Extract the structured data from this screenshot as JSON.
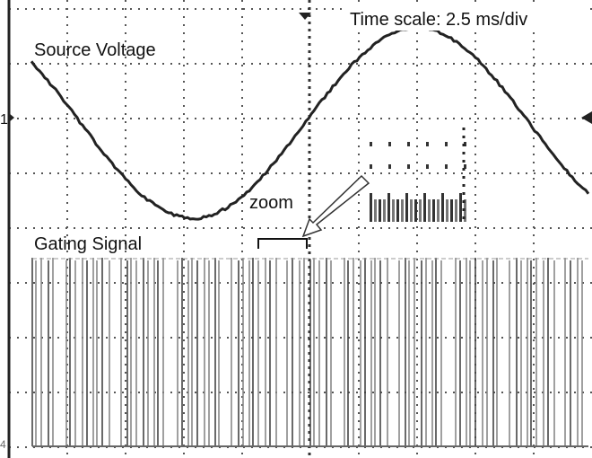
{
  "scope": {
    "time_scale": "Time scale: 2.5 ms/div",
    "source_label": "Source Voltage",
    "gating_label": "Gating Signal",
    "zoom_label": "zoom",
    "channel_1_marker": "1",
    "channel_4_marker": "4"
  }
}
